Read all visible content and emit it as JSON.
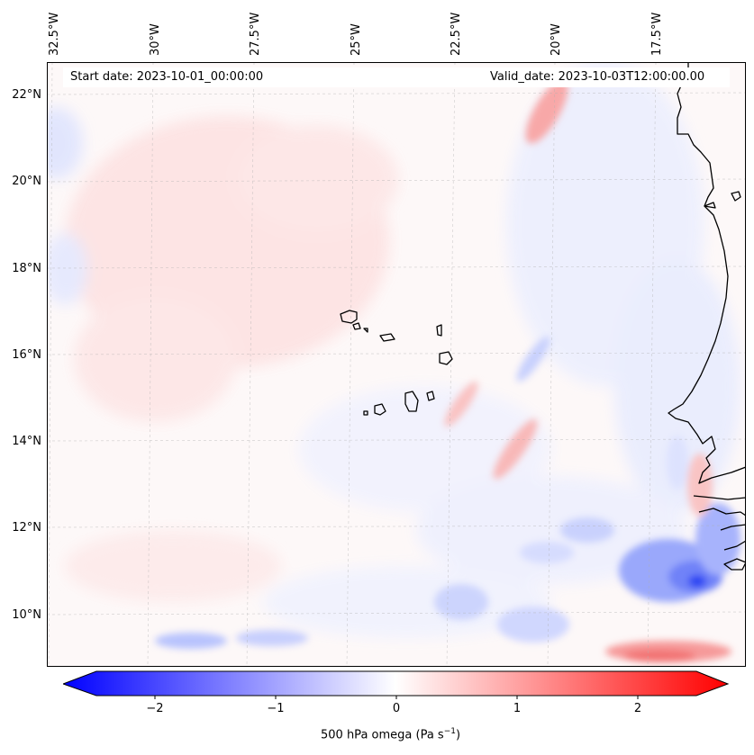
{
  "header": {
    "start_date": "Start date: 2023-10-01_00:00:00",
    "valid_date": "Valid_date: 2023-10-03T12:00:00.00"
  },
  "map": {
    "longitude_labels": [
      "32.5°W",
      "30°W",
      "27.5°W",
      "25°W",
      "22.5°W",
      "20°W",
      "17.5°W"
    ],
    "latitude_labels": [
      "22°N",
      "20°N",
      "18°N",
      "16°N",
      "14°N",
      "12°N",
      "10°N"
    ],
    "gridlines": true,
    "coastline_color": "#000000",
    "colormap": "bwr"
  },
  "colorbar": {
    "ticks": [
      "−2",
      "−1",
      "0",
      "1",
      "2"
    ],
    "label": "500 hPa omega (Pa s",
    "label_exponent": "−1",
    "label_suffix": ")",
    "range": [
      -2.6,
      2.6
    ],
    "colors": {
      "min": "#0000ff",
      "mid": "#ffffff",
      "max": "#ff0000"
    }
  }
}
